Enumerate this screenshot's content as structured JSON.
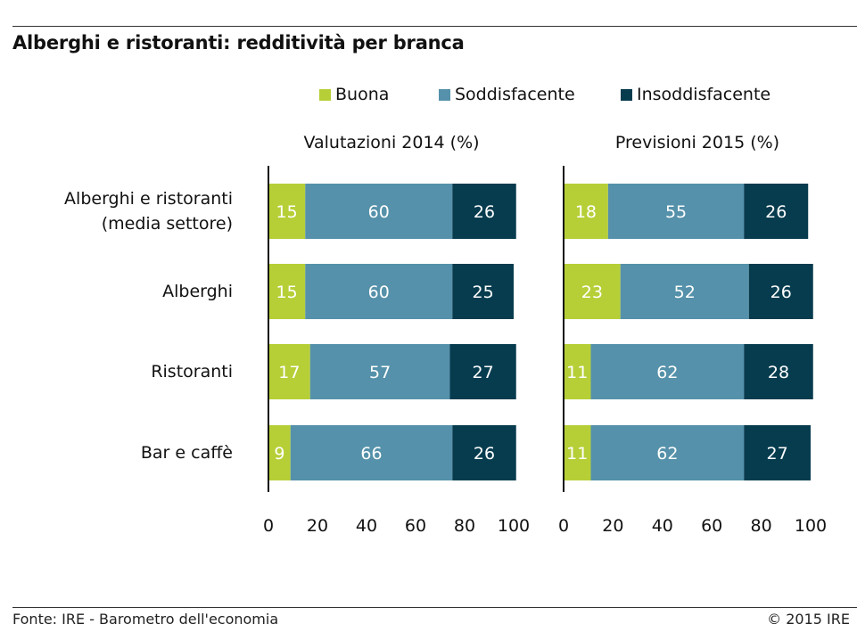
{
  "title": "Alberghi e ristoranti: redditività per branca",
  "footer": {
    "source": "Fonte: IRE - Barometro dell'economia",
    "copyright": "© 2015 IRE"
  },
  "colors": {
    "Buona": "#b6cf37",
    "Soddisfacente": "#5591aa",
    "Insoddisfacente": "#073c4f"
  },
  "chart_data": [
    {
      "type": "bar",
      "orientation": "horizontal",
      "stacked": true,
      "title": "Valutazioni 2014 (%)",
      "categories": [
        "Alberghi e ristoranti\n(media settore)",
        "Alberghi",
        "Ristoranti",
        "Bar e caffè"
      ],
      "series": [
        {
          "name": "Buona",
          "values": [
            15,
            15,
            17,
            9
          ]
        },
        {
          "name": "Soddisfacente",
          "values": [
            60,
            60,
            57,
            66
          ]
        },
        {
          "name": "Insoddisfacente",
          "values": [
            26,
            25,
            27,
            26
          ]
        }
      ],
      "xlim": [
        0,
        100
      ],
      "xticks": [
        "0",
        "20",
        "40",
        "60",
        "80",
        "100"
      ],
      "grid": false,
      "legend": "top"
    },
    {
      "type": "bar",
      "orientation": "horizontal",
      "stacked": true,
      "title": "Previsioni 2015 (%)",
      "categories": [
        "Alberghi e ristoranti\n(media settore)",
        "Alberghi",
        "Ristoranti",
        "Bar e caffè"
      ],
      "series": [
        {
          "name": "Buona",
          "values": [
            18,
            23,
            11,
            11
          ]
        },
        {
          "name": "Soddisfacente",
          "values": [
            55,
            52,
            62,
            62
          ]
        },
        {
          "name": "Insoddisfacente",
          "values": [
            26,
            26,
            28,
            27
          ]
        }
      ],
      "xlim": [
        0,
        100
      ],
      "xticks": [
        "0",
        "20",
        "40",
        "60",
        "80",
        "100"
      ],
      "grid": false,
      "legend": "top"
    }
  ]
}
